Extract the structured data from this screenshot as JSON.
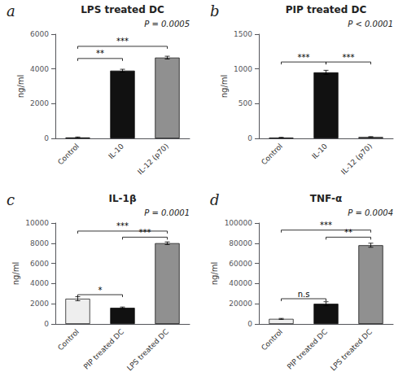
{
  "chart_data": [
    {
      "type": "bar",
      "panel_label": "a",
      "title": "LPS treated DC",
      "categories": [
        "Control",
        "IL-10",
        "IL-12 (p70)"
      ],
      "values": [
        50,
        3900,
        4650
      ],
      "errors": [
        30,
        80,
        80
      ],
      "colors": [
        "#111111",
        "#111111",
        "#909090"
      ],
      "ylabel": "ng/ml",
      "ylim": [
        0,
        6000
      ],
      "yticks": [
        0,
        2000,
        4000,
        6000
      ],
      "annotation": "P = 0.0005",
      "significance": [
        {
          "from": "Control",
          "to": "IL-10",
          "y": 4600,
          "label": "**"
        },
        {
          "from": "Control",
          "to": "IL-12 (p70)",
          "y": 5300,
          "label": "***"
        }
      ],
      "grid": false
    },
    {
      "type": "bar",
      "panel_label": "b",
      "title": "PIP treated DC",
      "categories": [
        "Control",
        "IL-10",
        "IL-12 (p70)"
      ],
      "values": [
        10,
        950,
        20
      ],
      "errors": [
        5,
        30,
        5
      ],
      "colors": [
        "#111111",
        "#111111",
        "#909090"
      ],
      "ylabel": "ng/ml",
      "ylim": [
        0,
        1500
      ],
      "yticks": [
        0,
        500,
        1000,
        1500
      ],
      "annotation": "P < 0.0001",
      "significance": [
        {
          "from": "Control",
          "to": "IL-10",
          "y": 1100,
          "label": "***"
        },
        {
          "from": "IL-10",
          "to": "IL-12 (p70)",
          "y": 1100,
          "label": "***"
        }
      ],
      "grid": false
    },
    {
      "type": "bar",
      "panel_label": "c",
      "title": "IL-1β",
      "categories": [
        "Control",
        "PIP treated DC",
        "LPS treated DC"
      ],
      "values": [
        2500,
        1600,
        8000
      ],
      "errors": [
        200,
        80,
        130
      ],
      "colors": [
        "#eeeeee",
        "#111111",
        "#909090"
      ],
      "ylabel": "ng/ml",
      "ylim": [
        0,
        10000
      ],
      "yticks": [
        0,
        2000,
        4000,
        6000,
        8000,
        10000
      ],
      "annotation": "P = 0.0001",
      "significance": [
        {
          "from": "Control",
          "to": "PIP treated DC",
          "y": 2900,
          "label": "*"
        },
        {
          "from": "Control",
          "to": "LPS treated DC",
          "y": 9200,
          "label": "***"
        },
        {
          "from": "PIP treated DC",
          "to": "LPS treated DC",
          "y": 8600,
          "label": "***"
        }
      ],
      "grid": false
    },
    {
      "type": "bar",
      "panel_label": "d",
      "title": "TNF-α",
      "categories": [
        "Control",
        "PIP treated DC",
        "LPS treated DC"
      ],
      "values": [
        5000,
        20000,
        78000
      ],
      "errors": [
        500,
        2000,
        2000
      ],
      "colors": [
        "#eeeeee",
        "#111111",
        "#909090"
      ],
      "ylabel": "ng/ml",
      "ylim": [
        0,
        100000
      ],
      "yticks": [
        0,
        20000,
        40000,
        60000,
        80000,
        100000
      ],
      "annotation": "P = 0.0004",
      "significance": [
        {
          "from": "Control",
          "to": "PIP treated DC",
          "y": 25000,
          "label": "n.s"
        },
        {
          "from": "Control",
          "to": "LPS treated DC",
          "y": 93000,
          "label": "***"
        },
        {
          "from": "PIP treated DC",
          "to": "LPS treated DC",
          "y": 86000,
          "label": "**"
        }
      ],
      "grid": false
    }
  ]
}
